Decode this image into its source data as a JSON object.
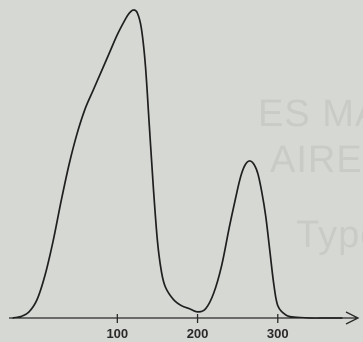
{
  "chart_data": {
    "type": "line",
    "title": "",
    "xlabel": "",
    "ylabel": "",
    "x_ticks": [
      100,
      200,
      300
    ],
    "xlim": [
      -35,
      390
    ],
    "ylim": [
      0,
      100
    ],
    "show_arrow": true,
    "grid": false,
    "series": [
      {
        "x": [
          -30,
          -20,
          -10,
          0,
          10,
          20,
          30,
          40,
          50,
          60,
          70,
          80,
          90,
          100,
          110,
          115,
          120,
          125,
          130,
          135,
          140,
          145,
          150,
          155,
          160,
          170,
          180,
          190,
          200,
          210,
          220,
          230,
          240,
          250,
          255,
          260,
          265,
          270,
          275,
          280,
          285,
          290,
          295,
          300,
          310,
          320,
          340,
          360,
          380
        ],
        "y": [
          0,
          0.5,
          2,
          6,
          14,
          25,
          38,
          50,
          60,
          68,
          74,
          80,
          86,
          92,
          97,
          99,
          100,
          99,
          94,
          82,
          62,
          42,
          25,
          15,
          10,
          6,
          4,
          3,
          2,
          3,
          8,
          17,
          30,
          42,
          47,
          50,
          51,
          50,
          47,
          41,
          33,
          22,
          11,
          4,
          1,
          0.3,
          0,
          0,
          0
        ]
      }
    ]
  },
  "background_text": [
    "ES MARBRES D",
    "AIRE DU CHA",
    "Typologie"
  ]
}
